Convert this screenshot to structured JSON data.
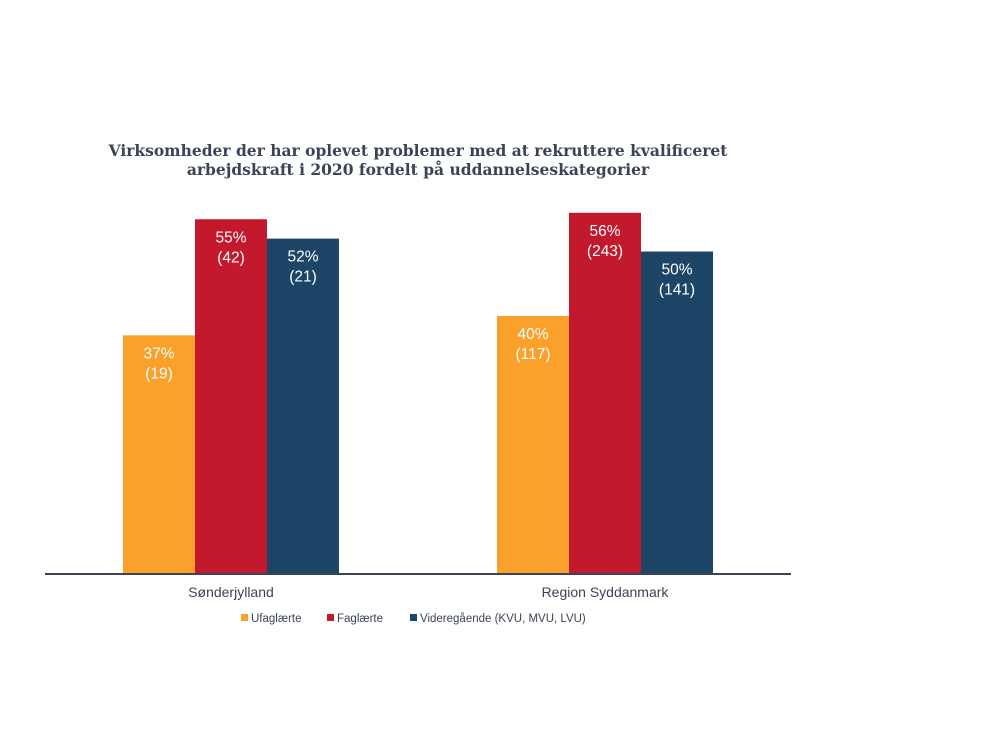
{
  "chart_data": {
    "type": "bar",
    "title_lines": [
      "Virksomheder der har oplevet problemer med at rekruttere kvalificeret",
      "arbejdskraft i 2020 fordelt på uddannelseskategorier"
    ],
    "categories": [
      "Sønderjylland",
      "Region Syddanmark"
    ],
    "series": [
      {
        "name": "Ufaglærte",
        "color": "#f9a12a",
        "values": [
          37,
          40
        ],
        "labels": [
          "37%",
          "40%"
        ],
        "counts": [
          "(19)",
          "(117)"
        ]
      },
      {
        "name": "Faglærte",
        "color": "#c3192d",
        "values": [
          55,
          56
        ],
        "labels": [
          "55%",
          "56%"
        ],
        "counts": [
          "(42)",
          "(243)"
        ]
      },
      {
        "name": "Videregående (KVU, MVU, LVU)",
        "color": "#1d4568",
        "values": [
          52,
          50
        ],
        "labels": [
          "52%",
          "50%"
        ],
        "counts": [
          "(21)",
          "(141)"
        ]
      }
    ],
    "ylim": [
      0,
      100
    ],
    "legend_position": "bottom",
    "grid": false,
    "axis_color": "#3b4456"
  }
}
